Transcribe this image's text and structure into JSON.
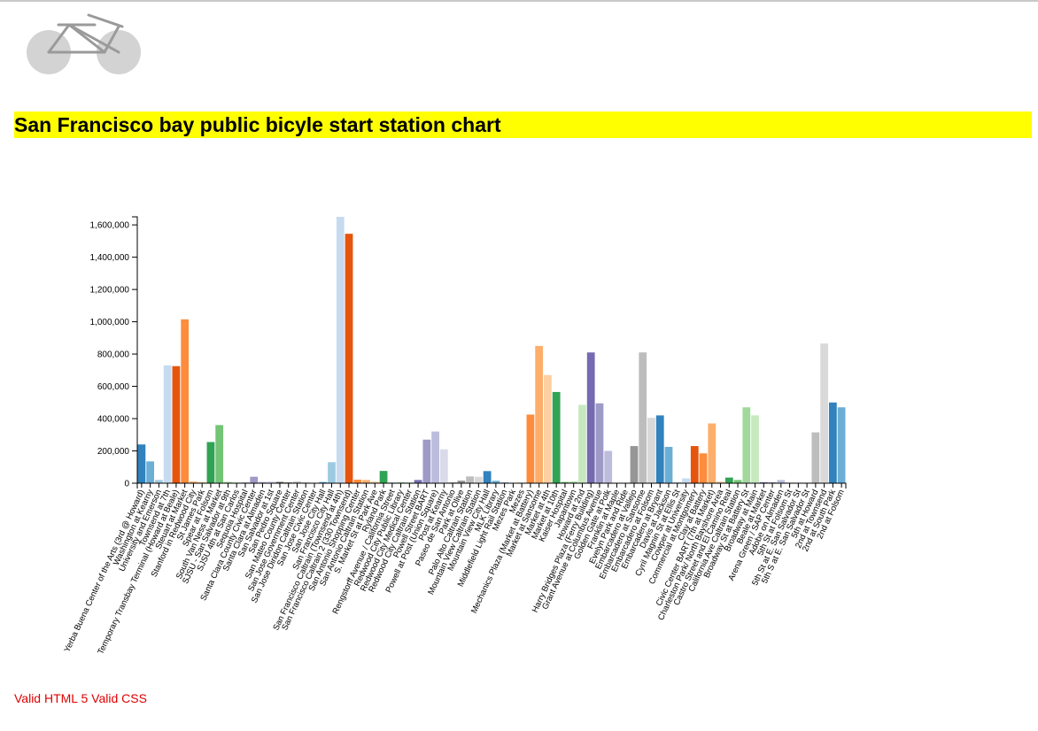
{
  "page": {
    "title": "San Francisco bay public bicyle start station chart",
    "footer_links": [
      "Valid HTML 5",
      "Valid CSS"
    ]
  },
  "logo": {
    "icon": "bicycle-icon",
    "color": "#d3d3d3"
  },
  "chart_data": {
    "type": "bar",
    "title": "San Francisco bay public bicyle start station chart",
    "xlabel": "",
    "ylabel": "",
    "ylim": [
      0,
      1650000
    ],
    "yticks": [
      0,
      200000,
      400000,
      600000,
      800000,
      1000000,
      1200000,
      1400000,
      1600000
    ],
    "grid": false,
    "legend": "none",
    "categories": [
      "Yerba Buena Center of the Arts (3rd @ Howard)",
      "Washington at Kearny",
      "University and Emerson",
      "Townsend at 7th",
      "Temporary Transbay Terminal (Howard at Beale)",
      "Steuart at Market",
      "Stanford in Redwood City",
      "St James Park",
      "Spear at Folsom",
      "South Van Ness at Market",
      "SJSU - San Salvador at 9th",
      "SJSU 4th at San Carlos",
      "Sequoia Hospital",
      "Santa Clara County Civic Center",
      "Santa Clara at Almaden",
      "San Salvador at 1st",
      "San Pedro Square",
      "San Mateo County Center",
      "San Jose Government Center",
      "San Jose Diridon Caltrain Station",
      "San Jose Civic Center",
      "San Jose City Hall",
      "San Francisco City Hall",
      "San Francisco Caltrain (Townsend at 4th)",
      "San Francisco Caltrain 2 (330 Townsend)",
      "San Antonio Shopping Center",
      "San Antonio Caltrain Station",
      "S. Market St at Park Ave",
      "Ryland Park",
      "Rengstorff Avenue / California Street",
      "Redwood City Public Library",
      "Redwood City Medical Center",
      "Redwood City Caltrain Station",
      "Powell Street BART",
      "Powell at Post (Union Square)",
      "Post at Kearny",
      "Paseo de San Antonio",
      "Park at Olive",
      "Palo Alto Caltrain Station",
      "Mountain View Caltrain Station",
      "Mountain View City Hall",
      "MLK Library",
      "Middlefield Light Rail Station",
      "Mezes Park",
      "Mezes",
      "Mechanics Plaza (Market at Battery)",
      "Market at Sansome",
      "Market at 4th",
      "Market at 10th",
      "Kaiser Hospital",
      "Japantown",
      "Howard at 2nd",
      "Harry Bridges Plaza (Ferry Building)",
      "Grant Avenue at Columbus Avenue",
      "Golden Gate at Polk",
      "Franklin at Maple",
      "Evelyn Park and Ride",
      "Embarcadero at Vallejo",
      "Embarcadero at Sansome",
      "Embarcadero at Folsom",
      "Embarcadero at Bryant",
      "Davis at Jackson",
      "Cyril Magnin St at Ellis St",
      "Cowper at University",
      "Commercial at Montgomery",
      "Clay at Battery",
      "Civic Center BART (7th at Market)",
      "Charleston Park/ North Bayshore Area",
      "Castro Street and El Camino Real",
      "California Ave Caltrain Station",
      "Broadway St at Battery St",
      "Broadway at Main",
      "Beale at Market",
      "Arena Green / SAP Center",
      "Adobe on Almaden",
      "5th St at Folsom St",
      "5th St at E. San Salvador St",
      "5th S at E. San Salvador St",
      "5th at Howard",
      "2nd at Townsend",
      "2nd at South Park",
      "2nd at Folsom"
    ],
    "values": [
      240000,
      135000,
      20000,
      730000,
      725000,
      1015000,
      10000,
      8000,
      255000,
      360000,
      8000,
      5000,
      4000,
      40000,
      8000,
      12000,
      8000,
      6000,
      10000,
      6000,
      2000,
      8000,
      130000,
      1650000,
      1545000,
      22000,
      20000,
      10000,
      76000,
      4000,
      6000,
      5000,
      20000,
      270000,
      320000,
      210000,
      4000,
      16000,
      42000,
      40000,
      75000,
      15000,
      6000,
      2000,
      3000,
      425000,
      850000,
      670000,
      565000,
      8000,
      10000,
      485000,
      810000,
      495000,
      200000,
      2000,
      2000,
      230000,
      810000,
      405000,
      420000,
      225000,
      5000,
      30000,
      230000,
      185000,
      370000,
      10000,
      35000,
      20000,
      470000,
      420000,
      6000,
      6000,
      20000,
      4000,
      3000,
      3000,
      315000,
      865000,
      500000,
      470000
    ],
    "colors": [
      "#3182bd",
      "#6baed6",
      "#9ecae1",
      "#c6dbef",
      "#e6550d",
      "#fd8d3c",
      "#fdae6b",
      "#fdd0a2",
      "#31a354",
      "#74c476",
      "#a1d99b",
      "#c7e9c0",
      "#756bb1",
      "#9e9ac8",
      "#bcbddc",
      "#dadaeb",
      "#636363",
      "#969696",
      "#bdbdbd",
      "#d9d9d9"
    ]
  }
}
